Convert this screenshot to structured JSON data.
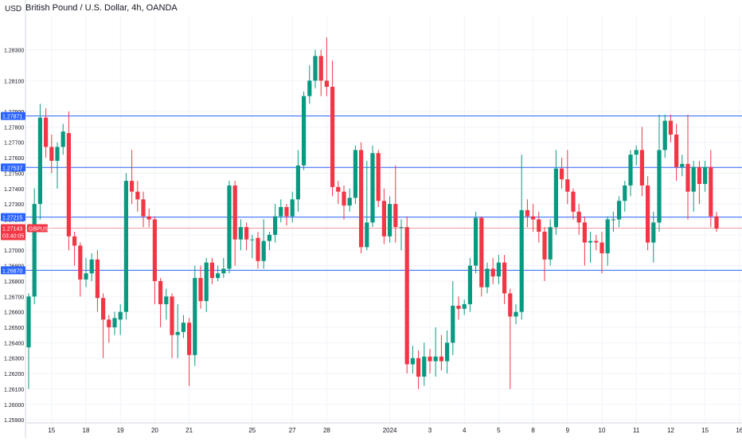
{
  "header": {
    "title": "British Pound / U.S. Dollar, 4h, OANDA",
    "currency": "USD"
  },
  "colors": {
    "up": "#089981",
    "down": "#f23645",
    "level_line": "#2962ff",
    "price_line": "#f23645",
    "grid": "#f0f3fa",
    "axis_text": "#131722",
    "label_bg": "#2962ff"
  },
  "chart_data": {
    "type": "candlestick",
    "symbol": "GBPUSD",
    "timeframe": "4h",
    "ylim": [
      1.2588,
      1.2852
    ],
    "y_ticks": [
      "1.28300",
      "1.28100",
      "1.27900",
      "1.27800",
      "1.27700",
      "1.27600",
      "1.27500",
      "1.27400",
      "1.27300",
      "1.27200",
      "1.27100",
      "1.27000",
      "1.26900",
      "1.26800",
      "1.26700",
      "1.26600",
      "1.26500",
      "1.26400",
      "1.26300",
      "1.26200",
      "1.26100",
      "1.26000",
      "1.25900"
    ],
    "x_ticks": [
      {
        "label": "15",
        "i": 4
      },
      {
        "label": "18",
        "i": 10
      },
      {
        "label": "19",
        "i": 16
      },
      {
        "label": "20",
        "i": 22
      },
      {
        "label": "21",
        "i": 28
      },
      {
        "label": "25",
        "i": 39
      },
      {
        "label": "27",
        "i": 46
      },
      {
        "label": "28",
        "i": 52
      },
      {
        "label": "2024",
        "i": 63
      },
      {
        "label": "3",
        "i": 70
      },
      {
        "label": "4",
        "i": 76
      },
      {
        "label": "5",
        "i": 82
      },
      {
        "label": "8",
        "i": 88
      },
      {
        "label": "9",
        "i": 94
      },
      {
        "label": "10",
        "i": 100
      },
      {
        "label": "11",
        "i": 106
      },
      {
        "label": "12",
        "i": 112
      },
      {
        "label": "15",
        "i": 118
      },
      {
        "label": "16",
        "i": 124
      }
    ],
    "levels": [
      {
        "price": 1.27871,
        "label": "1.27871"
      },
      {
        "price": 1.27537,
        "label": "1.27537"
      },
      {
        "price": 1.27215,
        "label": "1.27215"
      },
      {
        "price": 1.2687,
        "label": "1.26870"
      }
    ],
    "current": {
      "price": 1.27143,
      "label": "1.27143",
      "countdown": "03:40:05",
      "symbol": "GBPUSD"
    },
    "candles": [
      [
        1.2637,
        1.267,
        1.261,
        1.2672
      ],
      [
        1.267,
        1.273,
        1.2665,
        1.274
      ],
      [
        1.273,
        1.2786,
        1.272,
        1.2795
      ],
      [
        1.2786,
        1.2767,
        1.276,
        1.2792
      ],
      [
        1.2767,
        1.2758,
        1.275,
        1.2775
      ],
      [
        1.2758,
        1.2767,
        1.274,
        1.277
      ],
      [
        1.2767,
        1.2777,
        1.2762,
        1.2782
      ],
      [
        1.2776,
        1.2709,
        1.27,
        1.279
      ],
      [
        1.2709,
        1.2703,
        1.269,
        1.2712
      ],
      [
        1.2703,
        1.2681,
        1.267,
        1.2705
      ],
      [
        1.2681,
        1.2685,
        1.2676,
        1.2695
      ],
      [
        1.2685,
        1.2694,
        1.268,
        1.2698
      ],
      [
        1.2694,
        1.2669,
        1.266,
        1.27
      ],
      [
        1.2669,
        1.2655,
        1.263,
        1.2672
      ],
      [
        1.2655,
        1.265,
        1.264,
        1.2658
      ],
      [
        1.265,
        1.2656,
        1.2645,
        1.266
      ],
      [
        1.2655,
        1.266,
        1.2645,
        1.2665
      ],
      [
        1.266,
        1.2745,
        1.2655,
        1.275
      ],
      [
        1.2745,
        1.2738,
        1.273,
        1.2765
      ],
      [
        1.2738,
        1.2733,
        1.2725,
        1.2745
      ],
      [
        1.2733,
        1.2722,
        1.2715,
        1.2738
      ],
      [
        1.2722,
        1.272,
        1.2715,
        1.2727
      ],
      [
        1.272,
        1.268,
        1.2665,
        1.2722
      ],
      [
        1.268,
        1.2665,
        1.265,
        1.2682
      ],
      [
        1.2665,
        1.267,
        1.2655,
        1.2675
      ],
      [
        1.267,
        1.2645,
        1.263,
        1.2672
      ],
      [
        1.2645,
        1.2647,
        1.263,
        1.2665
      ],
      [
        1.2647,
        1.2653,
        1.2643,
        1.2658
      ],
      [
        1.2653,
        1.2632,
        1.2612,
        1.2656
      ],
      [
        1.2632,
        1.2682,
        1.2625,
        1.269
      ],
      [
        1.2682,
        1.2667,
        1.2662,
        1.269
      ],
      [
        1.2667,
        1.2692,
        1.266,
        1.2695
      ],
      [
        1.2692,
        1.2682,
        1.2678,
        1.2695
      ],
      [
        1.2682,
        1.2685,
        1.268,
        1.269
      ],
      [
        1.2685,
        1.2688,
        1.2682,
        1.2695
      ],
      [
        1.2688,
        1.2742,
        1.2685,
        1.2745
      ],
      [
        1.2742,
        1.2707,
        1.269,
        1.2745
      ],
      [
        1.2707,
        1.2715,
        1.27,
        1.272
      ],
      [
        1.2715,
        1.2707,
        1.27,
        1.2718
      ],
      [
        1.2707,
        1.2707,
        1.2695,
        1.271
      ],
      [
        1.2708,
        1.2693,
        1.2688,
        1.2712
      ],
      [
        1.2693,
        1.2706,
        1.2688,
        1.272
      ],
      [
        1.2706,
        1.271,
        1.27,
        1.2712
      ],
      [
        1.271,
        1.2722,
        1.2705,
        1.273
      ],
      [
        1.2722,
        1.2728,
        1.2718,
        1.2733
      ],
      [
        1.2728,
        1.2722,
        1.2716,
        1.273
      ],
      [
        1.2722,
        1.2733,
        1.2718,
        1.2738
      ],
      [
        1.2733,
        1.2755,
        1.2725,
        1.2765
      ],
      [
        1.2755,
        1.28,
        1.2752,
        1.2803
      ],
      [
        1.28,
        1.281,
        1.2795,
        1.282
      ],
      [
        1.281,
        1.2826,
        1.2805,
        1.283
      ],
      [
        1.2826,
        1.281,
        1.28,
        1.283
      ],
      [
        1.281,
        1.2806,
        1.28,
        1.2838
      ],
      [
        1.2806,
        1.2741,
        1.2735,
        1.2823
      ],
      [
        1.2741,
        1.2738,
        1.273,
        1.2745
      ],
      [
        1.2738,
        1.2729,
        1.272,
        1.2742
      ],
      [
        1.2729,
        1.2734,
        1.2725,
        1.274
      ],
      [
        1.2734,
        1.2765,
        1.273,
        1.2768
      ],
      [
        1.2765,
        1.2702,
        1.2698,
        1.277
      ],
      [
        1.2702,
        1.2718,
        1.27,
        1.2758
      ],
      [
        1.2718,
        1.2763,
        1.2715,
        1.2768
      ],
      [
        1.2763,
        1.2732,
        1.2728,
        1.2765
      ],
      [
        1.2732,
        1.2709,
        1.2704,
        1.274
      ],
      [
        1.2709,
        1.273,
        1.2705,
        1.2735
      ],
      [
        1.273,
        1.2715,
        1.2705,
        1.2755
      ],
      [
        1.2715,
        1.2715,
        1.27,
        1.272
      ],
      [
        1.2715,
        1.2626,
        1.262,
        1.2722
      ],
      [
        1.2626,
        1.263,
        1.262,
        1.2638
      ],
      [
        1.263,
        1.2618,
        1.261,
        1.2635
      ],
      [
        1.2618,
        1.2631,
        1.2612,
        1.264
      ],
      [
        1.2631,
        1.2628,
        1.262,
        1.2636
      ],
      [
        1.2628,
        1.2631,
        1.2618,
        1.265
      ],
      [
        1.2631,
        1.2628,
        1.2622,
        1.2645
      ],
      [
        1.2628,
        1.264,
        1.262,
        1.2648
      ],
      [
        1.264,
        1.2664,
        1.2632,
        1.268
      ],
      [
        1.2664,
        1.2662,
        1.2655,
        1.267
      ],
      [
        1.2662,
        1.2665,
        1.2658,
        1.2668
      ],
      [
        1.2665,
        1.269,
        1.266,
        1.2695
      ],
      [
        1.269,
        1.2721,
        1.2685,
        1.2725
      ],
      [
        1.2721,
        1.2676,
        1.267,
        1.2722
      ],
      [
        1.2676,
        1.2688,
        1.2672,
        1.2692
      ],
      [
        1.2688,
        1.2683,
        1.2678,
        1.2695
      ],
      [
        1.2683,
        1.2692,
        1.2678,
        1.2697
      ],
      [
        1.2692,
        1.2672,
        1.2665,
        1.2697
      ],
      [
        1.2672,
        1.2657,
        1.261,
        1.2675
      ],
      [
        1.2657,
        1.266,
        1.2652,
        1.2665
      ],
      [
        1.266,
        1.2726,
        1.2655,
        1.2762
      ],
      [
        1.2726,
        1.2722,
        1.2715,
        1.2733
      ],
      [
        1.2722,
        1.272,
        1.2712,
        1.273
      ],
      [
        1.272,
        1.2712,
        1.2705,
        1.2725
      ],
      [
        1.2712,
        1.2694,
        1.268,
        1.2715
      ],
      [
        1.2694,
        1.2715,
        1.269,
        1.272
      ],
      [
        1.2715,
        1.2753,
        1.271,
        1.2765
      ],
      [
        1.2753,
        1.2746,
        1.274,
        1.276
      ],
      [
        1.2746,
        1.2738,
        1.273,
        1.2765
      ],
      [
        1.2738,
        1.2725,
        1.272,
        1.274
      ],
      [
        1.2725,
        1.2718,
        1.271,
        1.273
      ],
      [
        1.2718,
        1.2705,
        1.269,
        1.2722
      ],
      [
        1.2705,
        1.2706,
        1.2692,
        1.2712
      ],
      [
        1.2706,
        1.2705,
        1.27,
        1.271
      ],
      [
        1.2705,
        1.2698,
        1.2685,
        1.2712
      ],
      [
        1.2698,
        1.272,
        1.269,
        1.2722
      ],
      [
        1.272,
        1.272,
        1.2712,
        1.2725
      ],
      [
        1.272,
        1.2732,
        1.2715,
        1.2735
      ],
      [
        1.2732,
        1.2742,
        1.2725,
        1.2745
      ],
      [
        1.2742,
        1.2762,
        1.2735,
        1.2765
      ],
      [
        1.2762,
        1.2765,
        1.2755,
        1.2768
      ],
      [
        1.2765,
        1.2742,
        1.2735,
        1.278
      ],
      [
        1.2742,
        1.2705,
        1.27,
        1.2748
      ],
      [
        1.2705,
        1.2718,
        1.2692,
        1.2725
      ],
      [
        1.2718,
        1.2765,
        1.2712,
        1.2788
      ],
      [
        1.2765,
        1.2784,
        1.276,
        1.2788
      ],
      [
        1.2784,
        1.2775,
        1.277,
        1.2788
      ],
      [
        1.2775,
        1.2754,
        1.2745,
        1.2782
      ],
      [
        1.2754,
        1.2756,
        1.2748,
        1.2762
      ],
      [
        1.2756,
        1.2738,
        1.272,
        1.2788
      ],
      [
        1.2738,
        1.2754,
        1.2725,
        1.2758
      ],
      [
        1.2754,
        1.2743,
        1.273,
        1.2758
      ],
      [
        1.2743,
        1.2754,
        1.2738,
        1.2758
      ],
      [
        1.2754,
        1.2722,
        1.2715,
        1.2765
      ],
      [
        1.2722,
        1.2714,
        1.2712,
        1.2725
      ]
    ]
  }
}
